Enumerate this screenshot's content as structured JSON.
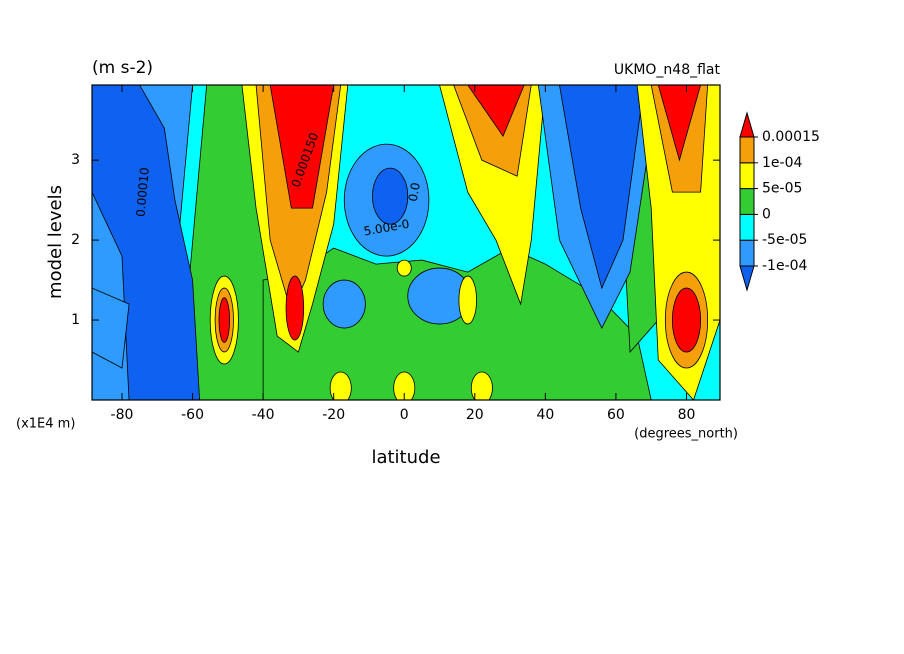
{
  "chart_data": {
    "type": "contour",
    "title": "(m s-2)",
    "subtitle": "UKMO_n48_flat",
    "x_label": "latitude",
    "y_label": "model levels",
    "x_unit": "(degrees_north)",
    "y_unit": "(x1E4 m)",
    "xlim": [
      -88.5,
      89.5
    ],
    "ylim": [
      0,
      3.94
    ],
    "xticks": [
      -80,
      -60,
      -40,
      -20,
      0,
      20,
      40,
      60,
      80
    ],
    "yticks": [
      1,
      2,
      3
    ],
    "levels": [
      {
        "value": -0.0001,
        "label": "-1e-04"
      },
      {
        "value": -5e-05,
        "label": "-5e-05"
      },
      0,
      {
        "value": 5e-05,
        "label": "5e-05"
      },
      {
        "value": 0.0001,
        "label": "1e-04"
      },
      0.00015
    ],
    "colors": [
      "#0f62f0",
      "#2f9bff",
      "#00ffff",
      "#33cc33",
      "#ffff00",
      "#f5a00b",
      "#ff0000"
    ],
    "contour_labels": [
      "0.000150",
      "0.00010",
      "5.00e-0",
      "0.0"
    ]
  }
}
